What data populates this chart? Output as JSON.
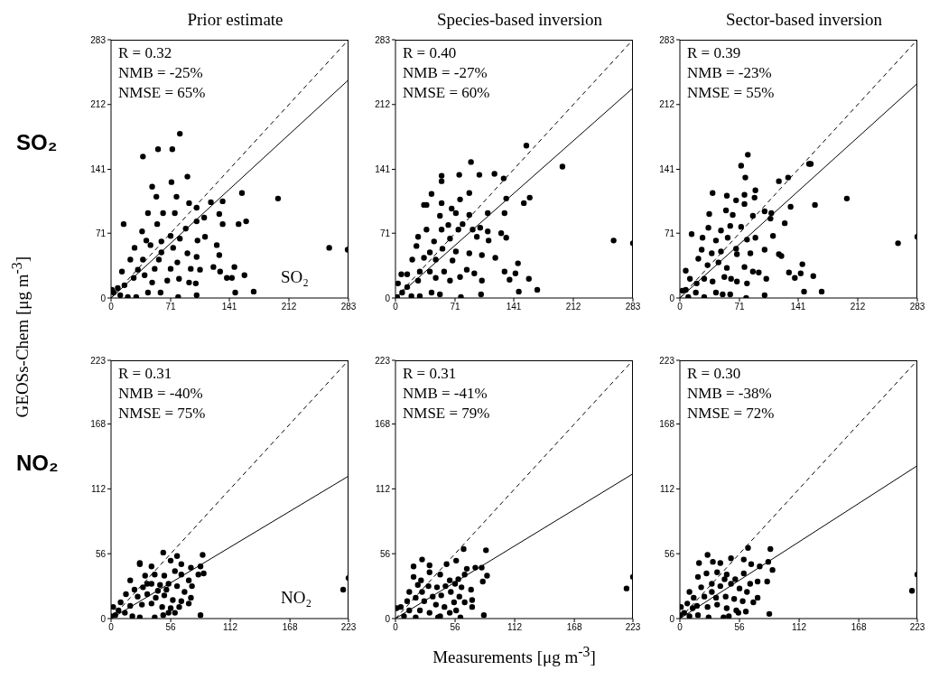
{
  "chart_data": [
    {
      "type": "scatter",
      "title": "Prior estimate",
      "ylabel": "GEOSs-Chem [μg m$^{-3}$]",
      "xlim": [
        0,
        283
      ],
      "ylim": [
        0,
        283
      ],
      "xticks": [
        0,
        71,
        141,
        212,
        283
      ],
      "yticks": [
        0,
        71,
        141,
        212,
        283
      ],
      "marker": "circle",
      "annotations": [
        "R = 0.32",
        "NMB = -25%",
        "NMSE = 65%",
        "SO₂",
        "SO₂"
      ],
      "series": [
        {
          "type": "line",
          "line_style": "dashed",
          "marker": "none",
          "color": "#000000",
          "x": [
            0,
            283
          ],
          "values": [
            0,
            283
          ]
        },
        {
          "type": "line",
          "line_style": "solid",
          "marker": "none",
          "color": "#000000",
          "x": [
            0,
            283
          ],
          "values": [
            0,
            239
          ]
        },
        {
          "type": "scatter",
          "color": "#000000",
          "x": [
            82,
            38,
            56,
            73,
            91,
            72,
            49,
            54,
            78,
            156,
            199,
            260,
            282,
            15,
            44,
            62,
            76,
            93,
            102,
            119,
            133,
            111,
            129,
            133,
            152,
            161,
            102,
            37,
            55,
            71,
            82,
            89,
            112,
            103,
            28,
            47,
            60,
            74,
            91,
            102,
            126,
            129,
            23,
            38,
            57,
            79,
            95,
            106,
            122,
            130,
            147,
            138,
            144,
            159,
            13,
            27,
            40,
            49,
            67,
            81,
            93,
            101,
            16,
            3,
            8,
            11,
            20,
            30,
            44,
            59,
            80,
            102,
            148,
            170,
            32,
            52,
            71,
            60,
            42,
            1
          ],
          "values": [
            180,
            155,
            163,
            163,
            133,
            127,
            122,
            111,
            111,
            115,
            109,
            55,
            53,
            81,
            93,
            93,
            93,
            104,
            99,
            105,
            106,
            88,
            92,
            81,
            81,
            84,
            84,
            73,
            81,
            68,
            65,
            76,
            67,
            63,
            55,
            58,
            62,
            55,
            49,
            45,
            58,
            47,
            42,
            42,
            42,
            39,
            32,
            31,
            34,
            29,
            34,
            22,
            22,
            25,
            29,
            22,
            25,
            17,
            19,
            21,
            17,
            16,
            14,
            6,
            11,
            3,
            1,
            1,
            6,
            6,
            1,
            3,
            6,
            7,
            31,
            32,
            32,
            50,
            63,
            9
          ]
        }
      ]
    },
    {
      "type": "scatter",
      "title": "Species-based inversion",
      "xlim": [
        0,
        283
      ],
      "ylim": [
        0,
        283
      ],
      "xticks": [
        0,
        71,
        141,
        212,
        283
      ],
      "yticks": [
        0,
        71,
        141,
        212,
        283
      ],
      "marker": "circle",
      "annotations": [
        "R = 0.40",
        "NMB = -27%",
        "NMSE = 60%"
      ],
      "series": [
        {
          "type": "line",
          "line_style": "dashed",
          "marker": "none",
          "color": "#000000",
          "x": [
            0,
            283
          ],
          "values": [
            0,
            283
          ]
        },
        {
          "type": "line",
          "line_style": "solid",
          "marker": "none",
          "color": "#000000",
          "x": [
            0,
            283
          ],
          "values": [
            0,
            230
          ]
        },
        {
          "type": "scatter",
          "color": "#000000",
          "x": [
            156,
            199,
            90,
            55,
            55,
            76,
            100,
            118,
            129,
            43,
            34,
            37,
            55,
            77,
            88,
            132,
            153,
            160,
            53,
            67,
            72,
            88,
            110,
            130,
            37,
            55,
            63,
            80,
            92,
            101,
            110,
            27,
            46,
            65,
            75,
            97,
            111,
            126,
            132,
            260,
            283,
            25,
            41,
            56,
            72,
            88,
            103,
            119,
            20,
            34,
            48,
            68,
            85,
            94,
            130,
            146,
            143,
            7,
            29,
            41,
            58,
            27,
            48,
            65,
            77,
            103,
            136,
            159,
            3,
            14,
            8,
            19,
            29,
            43,
            53,
            78,
            102,
            147,
            169,
            2,
            14
          ],
          "values": [
            167,
            144,
            149,
            134,
            128,
            135,
            135,
            136,
            131,
            114,
            102,
            102,
            104,
            108,
            115,
            109,
            104,
            110,
            90,
            98,
            93,
            91,
            93,
            93,
            75,
            75,
            80,
            81,
            75,
            77,
            73,
            67,
            62,
            65,
            75,
            67,
            63,
            71,
            66,
            63,
            60,
            57,
            50,
            54,
            51,
            49,
            47,
            44,
            42,
            44,
            42,
            41,
            31,
            27,
            29,
            38,
            27,
            26,
            29,
            29,
            29,
            19,
            22,
            19,
            23,
            19,
            20,
            21,
            16,
            12,
            6,
            2,
            2,
            6,
            4,
            1,
            4,
            7,
            9,
            1,
            26
          ]
        }
      ]
    },
    {
      "type": "scatter",
      "title": "Sector-based inversion",
      "xlim": [
        0,
        283
      ],
      "ylim": [
        0,
        283
      ],
      "xticks": [
        0,
        71,
        141,
        212,
        283
      ],
      "yticks": [
        0,
        71,
        141,
        212,
        283
      ],
      "marker": "circle",
      "annotations": [
        "R = 0.39",
        "NMB = -23%",
        "NMSE = 55%"
      ],
      "series": [
        {
          "type": "line",
          "line_style": "dashed",
          "marker": "none",
          "color": "#000000",
          "x": [
            0,
            283
          ],
          "values": [
            0,
            283
          ]
        },
        {
          "type": "line",
          "line_style": "solid",
          "marker": "none",
          "color": "#000000",
          "x": [
            0,
            283
          ],
          "values": [
            0,
            235
          ]
        },
        {
          "type": "scatter",
          "color": "#000000",
          "x": [
            81,
            73,
            78,
            118,
            129,
            154,
            156,
            199,
            161,
            260,
            283,
            39,
            56,
            67,
            77,
            90,
            35,
            55,
            63,
            77,
            89,
            101,
            109,
            132,
            34,
            49,
            60,
            73,
            87,
            108,
            125,
            14,
            27,
            43,
            57,
            67,
            80,
            90,
            111,
            26,
            38,
            49,
            68,
            84,
            101,
            118,
            121,
            7,
            22,
            33,
            46,
            56,
            77,
            87,
            94,
            103,
            130,
            137,
            144,
            146,
            159,
            12,
            20,
            29,
            39,
            53,
            61,
            68,
            80,
            3,
            10,
            19,
            29,
            43,
            51,
            60,
            79,
            101,
            148,
            169,
            7
          ],
          "values": [
            157,
            145,
            132,
            128,
            132,
            147,
            147,
            109,
            102,
            60,
            67,
            115,
            112,
            107,
            113,
            118,
            92,
            96,
            91,
            103,
            110,
            95,
            93,
            100,
            77,
            74,
            79,
            78,
            90,
            87,
            82,
            70,
            66,
            63,
            66,
            54,
            64,
            66,
            68,
            53,
            49,
            51,
            48,
            49,
            53,
            48,
            46,
            30,
            43,
            36,
            39,
            33,
            34,
            29,
            28,
            21,
            28,
            22,
            27,
            37,
            24,
            21,
            16,
            21,
            18,
            23,
            21,
            18,
            16,
            8,
            1,
            6,
            1,
            6,
            4,
            4,
            0,
            3,
            7,
            7,
            9
          ]
        }
      ]
    },
    {
      "type": "scatter",
      "xlim": [
        0,
        223
      ],
      "ylim": [
        0,
        223
      ],
      "xticks": [
        0,
        56,
        112,
        168,
        223
      ],
      "yticks": [
        0,
        56,
        112,
        168,
        223
      ],
      "marker": "circle",
      "annotations": [
        "R = 0.31",
        "NMB = -40%",
        "NMSE = 75%",
        "NO₂",
        "NO₂"
      ],
      "series": [
        {
          "type": "line",
          "line_style": "dashed",
          "marker": "none",
          "color": "#000000",
          "x": [
            0,
            223
          ],
          "values": [
            0,
            223
          ]
        },
        {
          "type": "line",
          "line_style": "solid",
          "marker": "none",
          "color": "#000000",
          "x": [
            0,
            223
          ],
          "values": [
            0,
            123
          ]
        },
        {
          "type": "scatter",
          "color": "#000000",
          "x": [
            49,
            27,
            27,
            38,
            56,
            62,
            86,
            84,
            87,
            82,
            75,
            66,
            223,
            218,
            18,
            32,
            41,
            50,
            60,
            66,
            73,
            76,
            22,
            30,
            38,
            46,
            54,
            62,
            69,
            75,
            14,
            25,
            34,
            42,
            50,
            58,
            66,
            73,
            9,
            18,
            29,
            38,
            48,
            56,
            64,
            2,
            7,
            13,
            20,
            27,
            41,
            49,
            54,
            60,
            84,
            0,
            4,
            34,
            44,
            52
          ],
          "values": [
            57,
            48,
            47,
            45,
            50,
            54,
            55,
            45,
            39,
            38,
            44,
            47,
            35,
            25,
            33,
            37,
            38,
            37,
            41,
            38,
            33,
            28,
            25,
            27,
            30,
            29,
            30,
            28,
            23,
            18,
            21,
            19,
            21,
            18,
            20,
            16,
            15,
            13,
            14,
            11,
            12,
            13,
            10,
            9,
            10,
            10,
            7,
            5,
            2,
            1,
            1,
            3,
            5,
            5,
            3,
            2,
            3,
            30,
            24,
            25
          ]
        }
      ]
    },
    {
      "type": "scatter",
      "xlabel": "Measurements [μg m$^{-3}$]",
      "xlim": [
        0,
        223
      ],
      "ylim": [
        0,
        223
      ],
      "xticks": [
        0,
        56,
        112,
        168,
        223
      ],
      "yticks": [
        0,
        56,
        112,
        168,
        223
      ],
      "marker": "circle",
      "annotations": [
        "R = 0.31",
        "NMB = -41%",
        "NMSE = 79%"
      ],
      "series": [
        {
          "type": "line",
          "line_style": "dashed",
          "marker": "none",
          "color": "#000000",
          "x": [
            0,
            223
          ],
          "values": [
            0,
            223
          ]
        },
        {
          "type": "line",
          "line_style": "solid",
          "marker": "none",
          "color": "#000000",
          "x": [
            0,
            223
          ],
          "values": [
            0,
            125
          ]
        },
        {
          "type": "scatter",
          "color": "#000000",
          "x": [
            64,
            85,
            25,
            17,
            32,
            48,
            57,
            67,
            75,
            81,
            86,
            82,
            65,
            17,
            24,
            32,
            42,
            51,
            59,
            21,
            31,
            39,
            47,
            56,
            62,
            71,
            13,
            25,
            35,
            43,
            52,
            60,
            72,
            72,
            217,
            223,
            11,
            19,
            27,
            38,
            46,
            55,
            65,
            5,
            13,
            23,
            32,
            42,
            51,
            57,
            61,
            83,
            1,
            8,
            19,
            40
          ],
          "values": [
            60,
            59,
            51,
            45,
            46,
            47,
            50,
            43,
            44,
            44,
            37,
            32,
            38,
            36,
            33,
            40,
            38,
            33,
            34,
            29,
            28,
            27,
            28,
            30,
            27,
            25,
            23,
            23,
            19,
            20,
            23,
            19,
            16,
            10,
            26,
            36,
            15,
            18,
            15,
            12,
            10,
            14,
            14,
            10,
            7,
            7,
            5,
            2,
            5,
            7,
            1,
            3,
            9,
            2,
            1,
            1
          ]
        }
      ]
    },
    {
      "type": "scatter",
      "xlim": [
        0,
        223
      ],
      "ylim": [
        0,
        223
      ],
      "xticks": [
        0,
        56,
        112,
        168,
        223
      ],
      "yticks": [
        0,
        56,
        112,
        168,
        223
      ],
      "marker": "circle",
      "annotations": [
        "R = 0.30",
        "NMB = -38%",
        "NMSE = 72%"
      ],
      "series": [
        {
          "type": "line",
          "line_style": "dashed",
          "marker": "none",
          "color": "#000000",
          "x": [
            0,
            223
          ],
          "values": [
            0,
            223
          ]
        },
        {
          "type": "line",
          "line_style": "solid",
          "marker": "none",
          "color": "#000000",
          "x": [
            0,
            223
          ],
          "values": [
            0,
            132
          ]
        },
        {
          "type": "scatter",
          "color": "#000000",
          "x": [
            26,
            85,
            64,
            18,
            31,
            38,
            48,
            60,
            67,
            83,
            87,
            82,
            75,
            223,
            218,
            17,
            25,
            35,
            44,
            52,
            60,
            66,
            73,
            9,
            20,
            30,
            38,
            48,
            56,
            63,
            73,
            13,
            23,
            34,
            43,
            51,
            59,
            69,
            7,
            16,
            26,
            35,
            44,
            53,
            62,
            1,
            4,
            9,
            17,
            27,
            41,
            46,
            55,
            84,
            0,
            12,
            30,
            42
          ],
          "values": [
            55,
            60,
            61,
            48,
            49,
            48,
            52,
            51,
            47,
            49,
            42,
            32,
            45,
            38,
            24,
            36,
            39,
            40,
            38,
            34,
            39,
            30,
            32,
            23,
            27,
            30,
            28,
            30,
            26,
            23,
            18,
            18,
            19,
            18,
            19,
            17,
            15,
            14,
            13,
            11,
            10,
            12,
            9,
            7,
            6,
            10,
            5,
            2,
            3,
            1,
            1,
            2,
            5,
            4,
            3,
            9,
            23,
            34
          ]
        }
      ]
    }
  ]
}
